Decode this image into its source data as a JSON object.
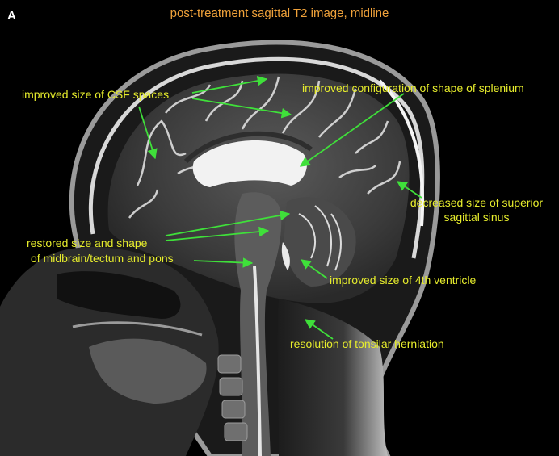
{
  "figure": {
    "panel_letter": "A",
    "title": "post-treatment sagittal T2 image, midline",
    "label_color": "#e6ec2c",
    "arrow_color": "#3fe03a",
    "title_color": "#f0a23a",
    "annotations": {
      "csf": "improved size of CSF spaces",
      "splenium": "improved configuration of shape of splenium",
      "sinus_line1": "decreased size of superior",
      "sinus_line2": "sagittal sinus",
      "midbrain_line1": "restored size and shape",
      "midbrain_line2": "of midbrain/tectum and pons",
      "ventricle": "improved size of 4th ventricle",
      "tonsil": "resolution of tonsilar herniation"
    }
  }
}
